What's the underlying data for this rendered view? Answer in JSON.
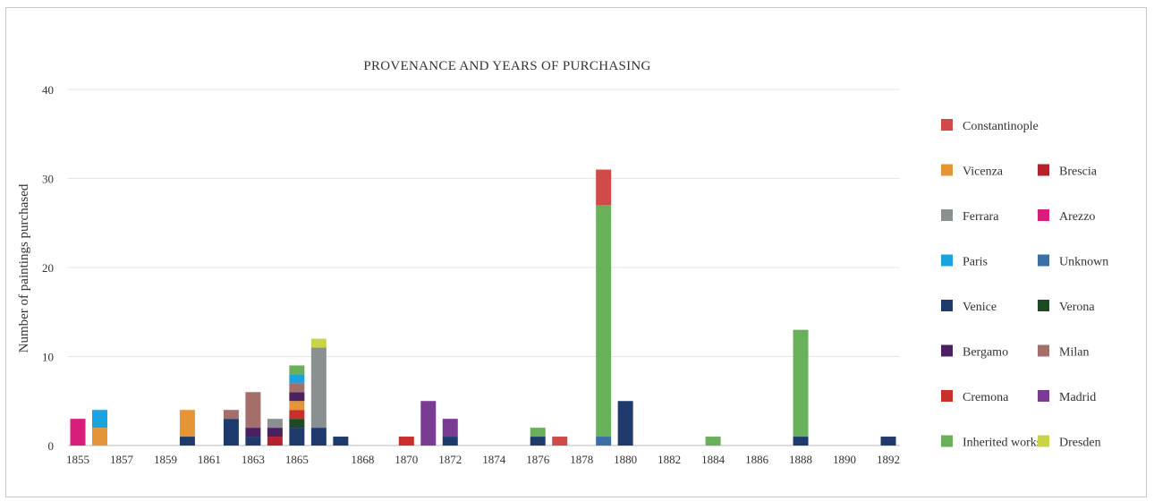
{
  "chart_data": {
    "type": "bar",
    "stacked": true,
    "title": "PROVENANCE AND YEARS OF PURCHASING",
    "ylabel": "Number of paintings purchased",
    "xlabel": "",
    "ylim": [
      0,
      40
    ],
    "yticks": [
      0,
      10,
      20,
      30,
      40
    ],
    "grid": true,
    "legend_position": "right",
    "xlim": [
      1855,
      1892
    ],
    "xticks": [
      1855,
      1857,
      1859,
      1861,
      1863,
      1865,
      1868,
      1870,
      1872,
      1874,
      1876,
      1878,
      1880,
      1882,
      1884,
      1886,
      1888,
      1890,
      1892
    ],
    "categories": [
      1855,
      1856,
      1860,
      1862,
      1863,
      1864,
      1865,
      1866,
      1867,
      1870,
      1871,
      1872,
      1876,
      1877,
      1879,
      1880,
      1884,
      1888,
      1892
    ],
    "series": [
      {
        "name": "Venice",
        "color": "#1f3b6e",
        "values": [
          0,
          0,
          1,
          3,
          1,
          0,
          2,
          2,
          1,
          0,
          0,
          1,
          1,
          0,
          0,
          5,
          0,
          1,
          1
        ]
      },
      {
        "name": "Unknown",
        "color": "#3a6fa8",
        "values": [
          0,
          0,
          0,
          0,
          0,
          0,
          0,
          0,
          0,
          0,
          0,
          0,
          0,
          0,
          1,
          0,
          0,
          0,
          0
        ]
      },
      {
        "name": "Verona",
        "color": "#1d4a22",
        "values": [
          0,
          0,
          0,
          0,
          0,
          0,
          1,
          0,
          0,
          0,
          0,
          0,
          0,
          0,
          0,
          0,
          0,
          0,
          0
        ]
      },
      {
        "name": "Brescia",
        "color": "#b5222b",
        "values": [
          0,
          0,
          0,
          0,
          0,
          1,
          0,
          0,
          0,
          0,
          0,
          0,
          0,
          0,
          0,
          0,
          0,
          0,
          0
        ]
      },
      {
        "name": "Cremona",
        "color": "#c9302c",
        "values": [
          0,
          0,
          0,
          0,
          0,
          0,
          1,
          0,
          0,
          1,
          0,
          0,
          0,
          0,
          0,
          0,
          0,
          0,
          0
        ]
      },
      {
        "name": "Vicenza",
        "color": "#e69536",
        "values": [
          0,
          2,
          3,
          0,
          0,
          0,
          1,
          0,
          0,
          0,
          0,
          0,
          0,
          0,
          0,
          0,
          0,
          0,
          0
        ]
      },
      {
        "name": "Bergamo",
        "color": "#4b2060",
        "values": [
          0,
          0,
          0,
          0,
          1,
          1,
          1,
          0,
          0,
          0,
          0,
          0,
          0,
          0,
          0,
          0,
          0,
          0,
          0
        ]
      },
      {
        "name": "Madrid",
        "color": "#7a3b92",
        "values": [
          0,
          0,
          0,
          0,
          0,
          0,
          0,
          0,
          0,
          0,
          5,
          2,
          0,
          0,
          0,
          0,
          0,
          0,
          0
        ]
      },
      {
        "name": "Milan",
        "color": "#a46f6a",
        "values": [
          0,
          0,
          0,
          1,
          4,
          0,
          1,
          0,
          0,
          0,
          0,
          0,
          0,
          0,
          0,
          0,
          0,
          0,
          0
        ]
      },
      {
        "name": "Ferrara",
        "color": "#8a8f8f",
        "values": [
          0,
          0,
          0,
          0,
          0,
          1,
          0,
          9,
          0,
          0,
          0,
          0,
          0,
          0,
          0,
          0,
          0,
          0,
          0
        ]
      },
      {
        "name": "Paris",
        "color": "#1ba3e0",
        "values": [
          0,
          2,
          0,
          0,
          0,
          0,
          1,
          0,
          0,
          0,
          0,
          0,
          0,
          0,
          0,
          0,
          0,
          0,
          0
        ]
      },
      {
        "name": "Arezzo",
        "color": "#d81e7a",
        "values": [
          3,
          0,
          0,
          0,
          0,
          0,
          0,
          0,
          0,
          0,
          0,
          0,
          0,
          0,
          0,
          0,
          0,
          0,
          0
        ]
      },
      {
        "name": "Inherited works",
        "color": "#69b05a",
        "values": [
          0,
          0,
          0,
          0,
          0,
          0,
          1,
          0,
          0,
          0,
          0,
          0,
          1,
          0,
          26,
          0,
          1,
          12,
          0
        ]
      },
      {
        "name": "Constantinople",
        "color": "#d04a4a",
        "values": [
          0,
          0,
          0,
          0,
          0,
          0,
          0,
          0,
          0,
          0,
          0,
          0,
          0,
          1,
          4,
          0,
          0,
          0,
          0
        ]
      },
      {
        "name": "Dresden",
        "color": "#c8d34a",
        "values": [
          0,
          0,
          0,
          0,
          0,
          0,
          0,
          1,
          0,
          0,
          0,
          0,
          0,
          0,
          0,
          0,
          0,
          0,
          0
        ]
      }
    ],
    "legend_entries": [
      [
        "Constantinople",
        null
      ],
      [
        "Vicenza",
        "Brescia"
      ],
      [
        "Ferrara",
        "Arezzo"
      ],
      [
        "Paris",
        "Unknown"
      ],
      [
        "Venice",
        "Verona"
      ],
      [
        "Bergamo",
        "Milan"
      ],
      [
        "Cremona",
        "Madrid"
      ],
      [
        "Inherited works",
        "Dresden"
      ]
    ]
  }
}
